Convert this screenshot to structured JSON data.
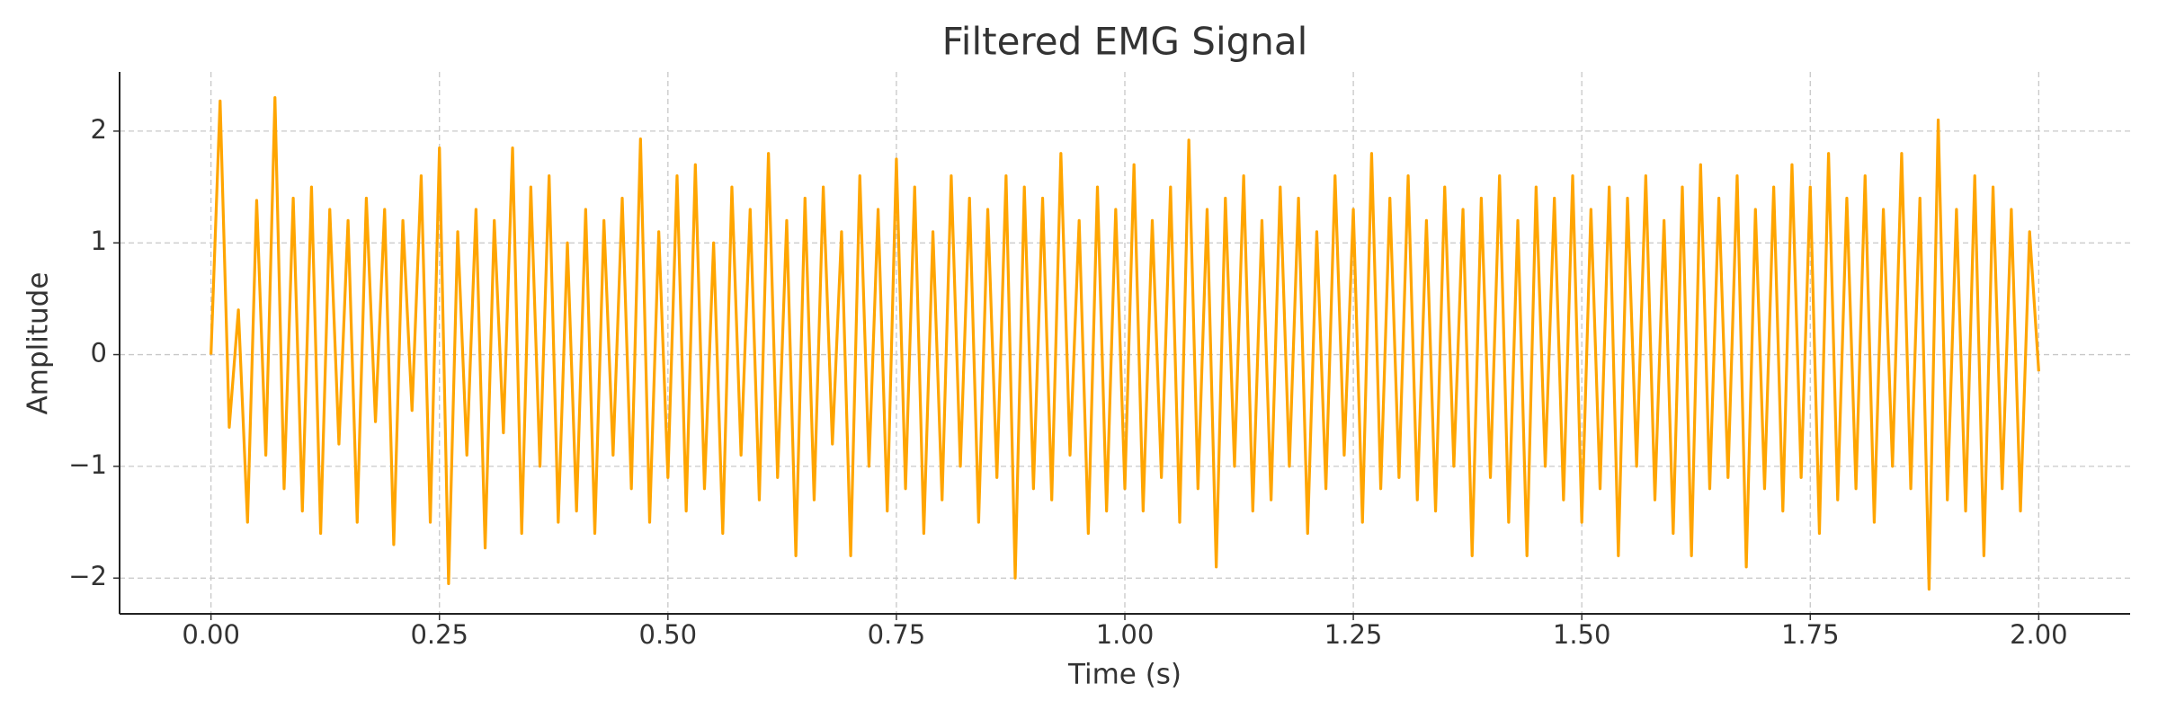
{
  "chart_data": {
    "type": "line",
    "title": "Filtered EMG Signal",
    "x_label": "Time (s)",
    "y_label": "Amplitude",
    "xlim": [
      -0.1,
      2.1
    ],
    "ylim": [
      -2.32,
      2.53
    ],
    "xticks": [
      {
        "value": 0,
        "label": "0.00"
      },
      {
        "value": 0.25,
        "label": "0.25"
      },
      {
        "value": 0.5,
        "label": "0.50"
      },
      {
        "value": 0.75,
        "label": "0.75"
      },
      {
        "value": 1,
        "label": "1.00"
      },
      {
        "value": 1.25,
        "label": "1.25"
      },
      {
        "value": 1.5,
        "label": "1.50"
      },
      {
        "value": 1.75,
        "label": "1.75"
      },
      {
        "value": 2,
        "label": "2.00"
      }
    ],
    "yticks": [
      {
        "value": -2,
        "label": "−2"
      },
      {
        "value": -1,
        "label": "−1"
      },
      0,
      1,
      2
    ],
    "grid": true,
    "x": [
      0,
      0.01,
      0.02,
      0.03,
      0.04,
      0.05,
      0.06,
      0.07,
      0.08,
      0.09,
      0.1,
      0.11,
      0.12,
      0.13,
      0.14,
      0.15,
      0.16,
      0.17,
      0.18,
      0.19,
      0.2,
      0.21,
      0.22,
      0.23,
      0.24,
      0.25,
      0.26,
      0.27,
      0.28,
      0.29,
      0.3,
      0.31,
      0.32,
      0.33,
      0.34,
      0.35,
      0.36,
      0.37,
      0.38,
      0.39,
      0.4,
      0.41,
      0.42,
      0.43,
      0.44,
      0.45,
      0.46,
      0.47,
      0.48,
      0.49,
      0.5,
      0.51,
      0.52,
      0.53,
      0.54,
      0.55,
      0.56,
      0.57,
      0.58,
      0.59,
      0.6,
      0.61,
      0.62,
      0.63,
      0.64,
      0.65,
      0.66,
      0.67,
      0.68,
      0.69,
      0.7,
      0.71,
      0.72,
      0.73,
      0.74,
      0.75,
      0.76,
      0.77,
      0.78,
      0.79,
      0.8,
      0.81,
      0.82,
      0.83,
      0.84,
      0.85,
      0.86,
      0.87,
      0.88,
      0.89,
      0.9,
      0.91,
      0.92,
      0.93,
      0.94,
      0.95,
      0.96,
      0.97,
      0.98,
      0.99,
      1,
      1.01,
      1.02,
      1.03,
      1.04,
      1.05,
      1.06,
      1.07,
      1.08,
      1.09,
      1.1,
      1.11,
      1.12,
      1.13,
      1.14,
      1.15,
      1.16,
      1.17,
      1.18,
      1.19,
      1.2,
      1.21,
      1.22,
      1.23,
      1.24,
      1.25,
      1.26,
      1.27,
      1.28,
      1.29,
      1.3,
      1.31,
      1.32,
      1.33,
      1.34,
      1.35,
      1.36,
      1.37,
      1.38,
      1.39,
      1.4,
      1.41,
      1.42,
      1.43,
      1.44,
      1.45,
      1.46,
      1.47,
      1.48,
      1.49,
      1.5,
      1.51,
      1.52,
      1.53,
      1.54,
      1.55,
      1.56,
      1.57,
      1.58,
      1.59,
      1.6,
      1.61,
      1.62,
      1.63,
      1.64,
      1.65,
      1.66,
      1.67,
      1.68,
      1.69,
      1.7,
      1.71,
      1.72,
      1.73,
      1.74,
      1.75,
      1.76,
      1.77,
      1.78,
      1.79,
      1.8,
      1.81,
      1.82,
      1.83,
      1.84,
      1.85,
      1.86,
      1.87,
      1.88,
      1.89,
      1.9,
      1.91,
      1.92,
      1.93,
      1.94,
      1.95,
      1.96,
      1.97,
      1.98,
      1.99,
      2
    ],
    "series": [
      {
        "color": "#ffa500",
        "values": [
          0,
          2.27,
          -0.65,
          0.4,
          -1.5,
          1.38,
          -0.9,
          2.3,
          -1.2,
          1.4,
          -1.4,
          1.5,
          -1.6,
          1.3,
          -0.8,
          1.2,
          -1.5,
          1.4,
          -0.6,
          1.3,
          -1.7,
          1.2,
          -0.5,
          1.6,
          -1.5,
          1.85,
          -2.05,
          1.1,
          -0.9,
          1.3,
          -1.73,
          1.2,
          -0.7,
          1.85,
          -1.6,
          1.5,
          -1.0,
          1.6,
          -1.5,
          1.0,
          -1.4,
          1.3,
          -1.6,
          1.2,
          -0.9,
          1.4,
          -1.2,
          1.93,
          -1.5,
          1.1,
          -1.1,
          1.6,
          -1.4,
          1.7,
          -1.2,
          1.0,
          -1.6,
          1.5,
          -0.9,
          1.3,
          -1.3,
          1.8,
          -1.1,
          1.2,
          -1.8,
          1.4,
          -1.3,
          1.5,
          -0.8,
          1.1,
          -1.8,
          1.6,
          -1.0,
          1.3,
          -1.4,
          1.75,
          -1.2,
          1.5,
          -1.6,
          1.1,
          -1.3,
          1.6,
          -1.0,
          1.4,
          -1.5,
          1.3,
          -1.1,
          1.6,
          -2.0,
          1.5,
          -1.2,
          1.4,
          -1.3,
          1.8,
          -0.9,
          1.2,
          -1.6,
          1.5,
          -1.4,
          1.3,
          -1.2,
          1.7,
          -1.4,
          1.2,
          -1.1,
          1.5,
          -1.5,
          1.92,
          -1.2,
          1.3,
          -1.9,
          1.4,
          -1.0,
          1.6,
          -1.4,
          1.2,
          -1.3,
          1.5,
          -1.0,
          1.4,
          -1.6,
          1.1,
          -1.2,
          1.6,
          -0.9,
          1.3,
          -1.5,
          1.8,
          -1.2,
          1.4,
          -1.1,
          1.6,
          -1.3,
          1.2,
          -1.4,
          1.5,
          -1.0,
          1.3,
          -1.8,
          1.4,
          -1.1,
          1.6,
          -1.5,
          1.2,
          -1.8,
          1.5,
          -1.0,
          1.4,
          -1.3,
          1.6,
          -1.5,
          1.3,
          -1.2,
          1.5,
          -1.8,
          1.4,
          -1.0,
          1.6,
          -1.3,
          1.2,
          -1.6,
          1.5,
          -1.8,
          1.7,
          -1.2,
          1.4,
          -1.1,
          1.6,
          -1.9,
          1.3,
          -1.2,
          1.5,
          -1.4,
          1.7,
          -1.1,
          1.5,
          -1.6,
          1.8,
          -1.3,
          1.4,
          -1.2,
          1.6,
          -1.5,
          1.3,
          -1.0,
          1.8,
          -1.2,
          1.4,
          -2.1,
          2.1,
          -1.3,
          1.3,
          -1.4,
          1.6,
          -1.8,
          1.5,
          -1.2,
          1.3,
          -1.4,
          1.1,
          -0.15
        ]
      }
    ]
  }
}
